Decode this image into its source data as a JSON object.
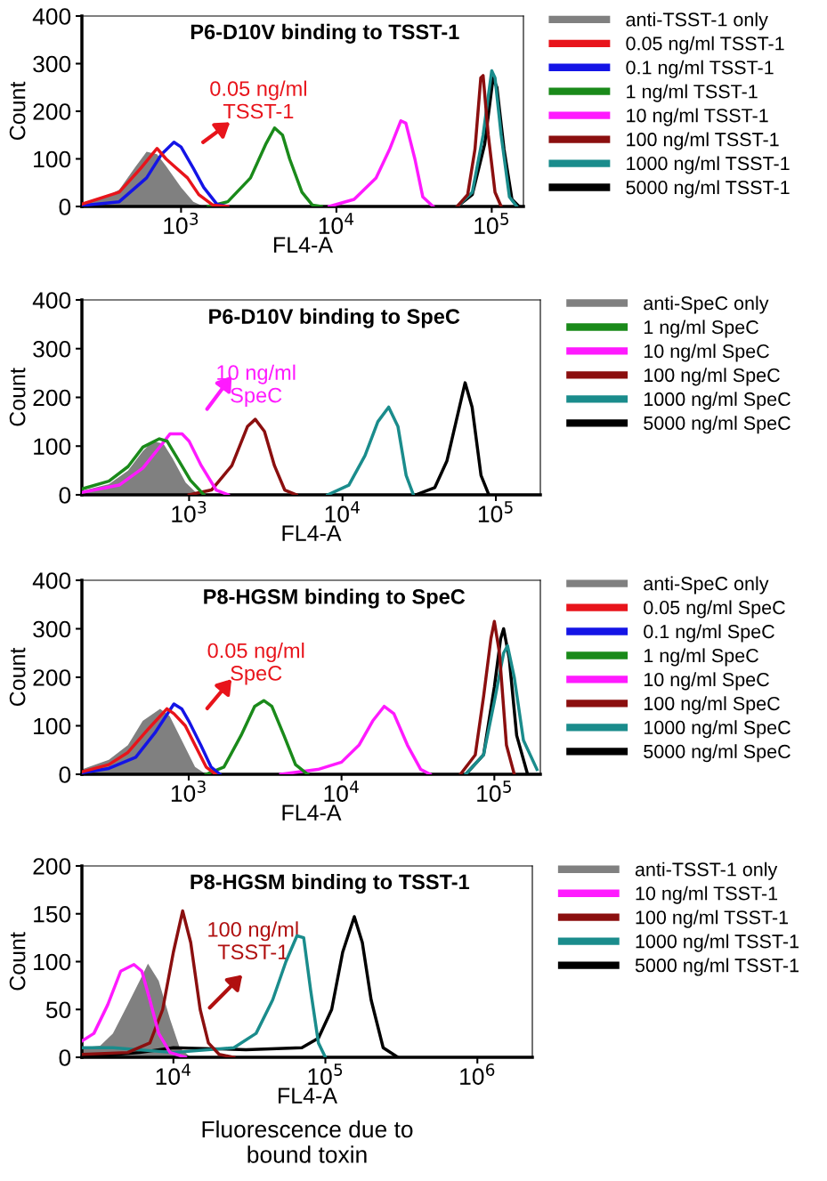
{
  "chart_data": [
    {
      "type": "line",
      "title": "P6-D10V binding to TSST-1",
      "xlabel": "FL4-A",
      "ylabel": "Count",
      "log": "x",
      "xlim": [
        230,
        160000
      ],
      "xticks": [
        {
          "value": 1000,
          "label": "10$^{3}$"
        },
        {
          "value": 10000,
          "label": "10$^{4}$"
        },
        {
          "value": 100000,
          "label": "10$^{5}$"
        }
      ],
      "ylim": [
        0,
        400
      ],
      "yticks": [
        0,
        100,
        200,
        300,
        400
      ],
      "legend": "right",
      "grid": false,
      "annotations": [
        "0.05 ng/ml\nTSST-1"
      ],
      "series": [
        {
          "name": "anti-TSST-1 only",
          "type": "area",
          "color": "#808080",
          "x": [
            230,
            300,
            400,
            500,
            600,
            700,
            800,
            1000,
            1200,
            1400
          ],
          "values": [
            8,
            15,
            35,
            80,
            115,
            110,
            85,
            40,
            10,
            0
          ]
        },
        {
          "name": "0.05 ng/ml TSST-1",
          "color": "#e8141b",
          "x": [
            230,
            400,
            550,
            700,
            800,
            900,
            1100,
            1300,
            1600,
            2000
          ],
          "values": [
            5,
            30,
            80,
            122,
            100,
            85,
            60,
            25,
            3,
            0
          ]
        },
        {
          "name": "0.1 ng/ml TSST-1",
          "color": "#1414e6",
          "x": [
            230,
            400,
            600,
            750,
            900,
            1000,
            1200,
            1400,
            1700,
            2000
          ],
          "values": [
            2,
            10,
            60,
            110,
            135,
            125,
            80,
            40,
            5,
            0
          ]
        },
        {
          "name": "1 ng/ml TSST-1",
          "color": "#1a8a1a",
          "x": [
            1500,
            2000,
            2800,
            3500,
            4000,
            4500,
            5000,
            6000,
            7000,
            8000
          ],
          "values": [
            0,
            10,
            60,
            130,
            165,
            150,
            100,
            30,
            3,
            0
          ]
        },
        {
          "name": "10 ng/ml TSST-1",
          "color": "#ff1aff",
          "x": [
            9000,
            13000,
            18000,
            22000,
            26000,
            28000,
            32000,
            36000,
            42000
          ],
          "values": [
            0,
            15,
            60,
            120,
            180,
            175,
            100,
            20,
            0
          ]
        },
        {
          "name": "100 ng/ml TSST-1",
          "color": "#8b0f0f",
          "x": [
            60000,
            70000,
            78000,
            85000,
            88000,
            95000,
            105000,
            115000
          ],
          "values": [
            0,
            25,
            120,
            270,
            275,
            150,
            30,
            0
          ]
        },
        {
          "name": "1000 ng/ml TSST-1",
          "color": "#1a8c8c",
          "x": [
            60000,
            75000,
            88000,
            100000,
            105000,
            115000,
            130000,
            145000
          ],
          "values": [
            0,
            30,
            150,
            285,
            270,
            150,
            20,
            0
          ]
        },
        {
          "name": "5000 ng/ml TSST-1",
          "color": "#000000",
          "x": [
            60000,
            75000,
            90000,
            102000,
            108000,
            120000,
            135000,
            150000
          ],
          "values": [
            0,
            25,
            130,
            270,
            250,
            120,
            15,
            0
          ]
        }
      ]
    },
    {
      "type": "line",
      "title": "P6-D10V binding to SpeC",
      "xlabel": "FL4-A",
      "ylabel": "Count",
      "log": "x",
      "xlim": [
        200,
        195000
      ],
      "xticks": [
        {
          "value": 1000,
          "label": "10$^{3}$"
        },
        {
          "value": 10000,
          "label": "10$^{4}$"
        },
        {
          "value": 100000,
          "label": "10$^{5}$"
        }
      ],
      "ylim": [
        0,
        400
      ],
      "yticks": [
        0,
        100,
        200,
        300,
        400
      ],
      "legend": "right",
      "grid": false,
      "annotations": [
        "10 ng/ml\nSpeC"
      ],
      "series": [
        {
          "name": "anti-SpeC only",
          "type": "area",
          "color": "#808080",
          "x": [
            200,
            300,
            400,
            500,
            580,
            680,
            780,
            950,
            1150
          ],
          "values": [
            8,
            22,
            50,
            90,
            110,
            105,
            75,
            25,
            0
          ]
        },
        {
          "name": "1 ng/ml SpeC",
          "color": "#1a8a1a",
          "x": [
            200,
            300,
            400,
            500,
            640,
            720,
            820,
            1020,
            1250
          ],
          "values": [
            12,
            28,
            58,
            98,
            115,
            110,
            80,
            30,
            0
          ]
        },
        {
          "name": "10 ng/ml SpeC",
          "color": "#ff1aff",
          "x": [
            200,
            350,
            500,
            650,
            750,
            900,
            1000,
            1200,
            1500,
            1800
          ],
          "values": [
            5,
            20,
            55,
            100,
            125,
            125,
            110,
            60,
            10,
            0
          ]
        },
        {
          "name": "100 ng/ml SpeC",
          "color": "#8b0f0f",
          "x": [
            1000,
            1400,
            1900,
            2400,
            2700,
            3100,
            3600,
            4200,
            5000
          ],
          "values": [
            0,
            10,
            60,
            140,
            155,
            130,
            60,
            10,
            0
          ]
        },
        {
          "name": "1000 ng/ml SpeC",
          "color": "#1a8c8c",
          "x": [
            8000,
            11000,
            14000,
            17000,
            20000,
            23000,
            26000,
            29000
          ],
          "values": [
            0,
            20,
            80,
            150,
            180,
            140,
            40,
            0
          ]
        },
        {
          "name": "5000 ng/ml SpeC",
          "color": "#000000",
          "x": [
            30000,
            40000,
            48000,
            55000,
            63000,
            70000,
            80000,
            90000
          ],
          "values": [
            0,
            15,
            70,
            150,
            230,
            180,
            40,
            0
          ]
        }
      ]
    },
    {
      "type": "line",
      "title": "P8-HGSM binding to SpeC",
      "xlabel": "FL4-A",
      "ylabel": "Count",
      "log": "x",
      "xlim": [
        200,
        200000
      ],
      "xticks": [
        {
          "value": 1000,
          "label": "10$^{3}$"
        },
        {
          "value": 10000,
          "label": "10$^{4}$"
        },
        {
          "value": 100000,
          "label": "10$^{5}$"
        }
      ],
      "ylim": [
        0,
        400
      ],
      "yticks": [
        0,
        100,
        200,
        300,
        400
      ],
      "legend": "right",
      "grid": false,
      "annotations": [
        "0.05 ng/ml\nSpeC"
      ],
      "series": [
        {
          "name": "anti-SpeC only",
          "type": "area",
          "color": "#808080",
          "x": [
            200,
            300,
            400,
            500,
            650,
            750,
            900,
            1100,
            1300
          ],
          "values": [
            10,
            30,
            60,
            110,
            135,
            120,
            70,
            15,
            0
          ]
        },
        {
          "name": "0.05 ng/ml SpeC",
          "color": "#e8141b",
          "x": [
            200,
            300,
            400,
            550,
            720,
            800,
            950,
            1100,
            1300,
            1500
          ],
          "values": [
            5,
            20,
            45,
            95,
            135,
            125,
            100,
            60,
            15,
            0
          ]
        },
        {
          "name": "0.1 ng/ml SpeC",
          "color": "#1414e6",
          "x": [
            200,
            300,
            450,
            600,
            800,
            900,
            1000,
            1200,
            1400,
            1600
          ],
          "values": [
            3,
            12,
            35,
            85,
            145,
            135,
            110,
            60,
            15,
            0
          ]
        },
        {
          "name": "1 ng/ml SpeC",
          "color": "#1a8a1a",
          "x": [
            1300,
            1700,
            2200,
            2700,
            3100,
            3500,
            4200,
            5000,
            6000
          ],
          "values": [
            0,
            15,
            80,
            140,
            152,
            140,
            80,
            20,
            0
          ]
        },
        {
          "name": "10 ng/ml SpeC",
          "color": "#ff1aff",
          "x": [
            4000,
            7000,
            10000,
            13000,
            16000,
            19000,
            22000,
            27000,
            33000,
            38000
          ],
          "values": [
            0,
            10,
            25,
            60,
            110,
            140,
            125,
            60,
            10,
            0
          ]
        },
        {
          "name": "100 ng/ml SpeC",
          "color": "#8b0f0f",
          "x": [
            60000,
            75000,
            85000,
            95000,
            100000,
            108000,
            120000,
            135000
          ],
          "values": [
            0,
            40,
            160,
            280,
            315,
            250,
            60,
            0
          ]
        },
        {
          "name": "1000 ng/ml SpeC",
          "color": "#1a8c8c",
          "x": [
            65000,
            85000,
            100000,
            115000,
            122000,
            135000,
            155000,
            190000
          ],
          "values": [
            0,
            40,
            150,
            250,
            265,
            200,
            70,
            10
          ]
        },
        {
          "name": "5000 ng/ml SpeC",
          "color": "#000000",
          "x": [
            65000,
            85000,
            100000,
            110000,
            115000,
            125000,
            140000,
            165000
          ],
          "values": [
            0,
            40,
            180,
            280,
            300,
            240,
            80,
            0
          ]
        }
      ]
    },
    {
      "type": "line",
      "title": "P8-HGSM binding to TSST-1",
      "xlabel": "FL4-A",
      "ylabel": "Count",
      "log": "x",
      "xlim": [
        2500,
        2300000
      ],
      "xticks": [
        {
          "value": 10000,
          "label": "10$^{4}$"
        },
        {
          "value": 100000,
          "label": "10$^{5}$"
        },
        {
          "value": 1000000,
          "label": "10$^{6}$"
        }
      ],
      "ylim": [
        0,
        200
      ],
      "yticks": [
        0,
        50,
        100,
        150,
        200
      ],
      "legend": "right",
      "grid": false,
      "annotations": [
        "100 ng/ml\nTSST-1",
        "Fluorescence due to\nbound toxin"
      ],
      "series": [
        {
          "name": "anti-TSST-1 only",
          "type": "area",
          "color": "#808080",
          "x": [
            2500,
            3300,
            4000,
            5000,
            6000,
            6800,
            8000,
            9500,
            11000,
            13000
          ],
          "values": [
            10,
            12,
            25,
            55,
            80,
            98,
            80,
            40,
            10,
            0
          ]
        },
        {
          "name": "10 ng/ml TSST-1",
          "color": "#ff1aff",
          "x": [
            2500,
            3000,
            3700,
            4500,
            5500,
            6200,
            7000,
            8000,
            9500,
            12000
          ],
          "values": [
            17,
            25,
            55,
            90,
            97,
            90,
            60,
            25,
            5,
            0
          ]
        },
        {
          "name": "100 ng/ml TSST-1",
          "color": "#8b0f0f",
          "x": [
            2500,
            5000,
            7000,
            8500,
            10000,
            11500,
            13000,
            15000,
            17000,
            20000,
            25000
          ],
          "values": [
            3,
            5,
            15,
            50,
            110,
            153,
            120,
            50,
            15,
            3,
            0
          ]
        },
        {
          "name": "1000 ng/ml TSST-1",
          "color": "#1a8c8c",
          "x": [
            2500,
            4000,
            10000,
            25000,
            35000,
            45000,
            55000,
            65000,
            72000,
            80000,
            90000,
            100000
          ],
          "values": [
            10,
            10,
            5,
            10,
            25,
            60,
            100,
            127,
            125,
            70,
            15,
            0
          ]
        },
        {
          "name": "5000 ng/ml TSST-1",
          "color": "#000000",
          "x": [
            2500,
            6000,
            10000,
            30000,
            70000,
            90000,
            110000,
            130000,
            155000,
            175000,
            200000,
            240000,
            300000
          ],
          "values": [
            0,
            5,
            10,
            8,
            10,
            20,
            50,
            110,
            147,
            120,
            60,
            10,
            0
          ]
        }
      ]
    }
  ]
}
